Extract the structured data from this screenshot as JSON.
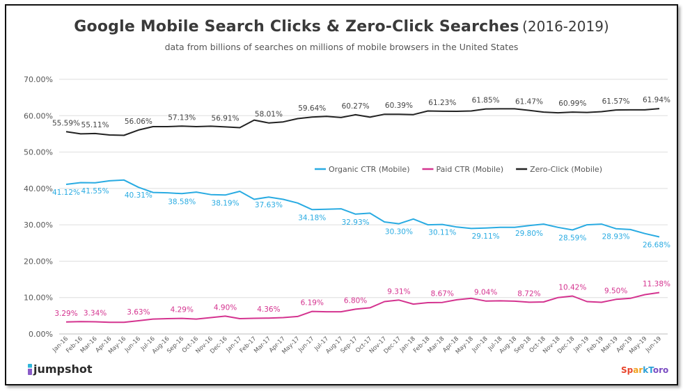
{
  "chart_data": {
    "type": "line",
    "title": "Google Mobile Search Clicks & Zero-Click Searches",
    "title_suffix": "(2016-2019)",
    "subtitle": "data from billions of searches on millions of mobile browsers in the United States",
    "xlabel": "",
    "ylabel": "",
    "ylim": [
      0,
      70
    ],
    "yticks": [
      "0.00%",
      "10.00%",
      "20.00%",
      "30.00%",
      "40.00%",
      "50.00%",
      "60.00%",
      "70.00%"
    ],
    "grid": true,
    "legend_position": "center-right",
    "categories": [
      "Jan-16",
      "Feb-16",
      "Mar-16",
      "Apr-16",
      "May-16",
      "Jun-16",
      "Jul-16",
      "Aug-16",
      "Sep-16",
      "Oct-16",
      "Nov-16",
      "Dec-16",
      "Jan-17",
      "Feb-17",
      "Mar-17",
      "Apr-17",
      "May-17",
      "Jun-17",
      "Jul-17",
      "Aug-17",
      "Sep-17",
      "Oct-17",
      "Nov-17",
      "Dec-17",
      "Jan-18",
      "Feb-18",
      "Mar-18",
      "Apr-18",
      "May-18",
      "Jun-18",
      "Jul-18",
      "Aug-18",
      "Sep-18",
      "Oct-18",
      "Nov-18",
      "Dec-18",
      "Jan-19",
      "Feb-19",
      "Mar-19",
      "Apr-19",
      "May-19",
      "Jun-19"
    ],
    "series": [
      {
        "name": "Organic CTR (Mobile)",
        "color": "#29abe2",
        "values": [
          41.12,
          41.6,
          41.55,
          42.1,
          42.3,
          40.31,
          38.9,
          38.8,
          38.58,
          39.0,
          38.3,
          38.19,
          39.2,
          37.0,
          37.63,
          37.0,
          36.0,
          34.18,
          34.3,
          34.4,
          32.93,
          33.2,
          30.8,
          30.3,
          31.6,
          30.0,
          30.11,
          29.4,
          29.0,
          29.11,
          29.3,
          29.3,
          29.8,
          30.2,
          29.3,
          28.59,
          30.0,
          30.2,
          28.93,
          28.7,
          27.6,
          26.68
        ],
        "labels": [
          [
            0,
            "41.12%"
          ],
          [
            2,
            "41.55%"
          ],
          [
            5,
            "40.31%"
          ],
          [
            8,
            "38.58%"
          ],
          [
            11,
            "38.19%"
          ],
          [
            14,
            "37.63%"
          ],
          [
            17,
            "34.18%"
          ],
          [
            20,
            "32.93%"
          ],
          [
            23,
            "30.30%"
          ],
          [
            26,
            "30.11%"
          ],
          [
            29,
            "29.11%"
          ],
          [
            32,
            "29.80%"
          ],
          [
            35,
            "28.59%"
          ],
          [
            38,
            "28.93%"
          ],
          [
            41,
            "26.68%"
          ]
        ],
        "label_position": "below"
      },
      {
        "name": "Paid CTR (Mobile)",
        "color": "#d4338f",
        "values": [
          3.29,
          3.4,
          3.34,
          3.2,
          3.2,
          3.63,
          4.1,
          4.2,
          4.29,
          4.1,
          4.5,
          4.9,
          4.2,
          4.3,
          4.36,
          4.5,
          4.8,
          6.19,
          6.1,
          6.1,
          6.8,
          7.2,
          8.9,
          9.31,
          8.2,
          8.6,
          8.67,
          9.4,
          9.8,
          9.04,
          9.1,
          9.0,
          8.72,
          8.8,
          10.0,
          10.42,
          8.9,
          8.7,
          9.5,
          9.8,
          10.8,
          11.38
        ],
        "labels": [
          [
            0,
            "3.29%"
          ],
          [
            2,
            "3.34%"
          ],
          [
            5,
            "3.63%"
          ],
          [
            8,
            "4.29%"
          ],
          [
            11,
            "4.90%"
          ],
          [
            14,
            "4.36%"
          ],
          [
            17,
            "6.19%"
          ],
          [
            20,
            "6.80%"
          ],
          [
            23,
            "9.31%"
          ],
          [
            26,
            "8.67%"
          ],
          [
            29,
            "9.04%"
          ],
          [
            32,
            "8.72%"
          ],
          [
            35,
            "10.42%"
          ],
          [
            38,
            "9.50%"
          ],
          [
            41,
            "11.38%"
          ]
        ],
        "label_position": "above"
      },
      {
        "name": "Zero-Click (Mobile)",
        "color": "#222222",
        "values": [
          55.59,
          55.0,
          55.11,
          54.7,
          54.6,
          56.06,
          57.0,
          57.0,
          57.13,
          57.0,
          57.1,
          56.91,
          56.7,
          58.8,
          58.01,
          58.3,
          59.2,
          59.64,
          59.8,
          59.5,
          60.27,
          59.6,
          60.4,
          60.39,
          60.3,
          61.3,
          61.23,
          61.2,
          61.3,
          61.85,
          61.9,
          61.9,
          61.47,
          61.0,
          60.8,
          60.99,
          60.9,
          61.1,
          61.57,
          61.6,
          61.6,
          61.94
        ],
        "labels": [
          [
            0,
            "55.59%"
          ],
          [
            2,
            "55.11%"
          ],
          [
            5,
            "56.06%"
          ],
          [
            8,
            "57.13%"
          ],
          [
            11,
            "56.91%"
          ],
          [
            14,
            "58.01%"
          ],
          [
            17,
            "59.64%"
          ],
          [
            20,
            "60.27%"
          ],
          [
            23,
            "60.39%"
          ],
          [
            26,
            "61.23%"
          ],
          [
            29,
            "61.85%"
          ],
          [
            32,
            "61.47%"
          ],
          [
            35,
            "60.99%"
          ],
          [
            38,
            "61.57%"
          ],
          [
            41,
            "61.94%"
          ]
        ],
        "label_position": "above"
      }
    ]
  },
  "branding": {
    "left_logo": "jumpshot",
    "right_logo_parts": [
      "Sp",
      "ar",
      "kT",
      "oro"
    ],
    "right_logo_colors": [
      "#e8452c",
      "#f0a21f",
      "#2a9fd6",
      "#7a4cc2"
    ]
  }
}
